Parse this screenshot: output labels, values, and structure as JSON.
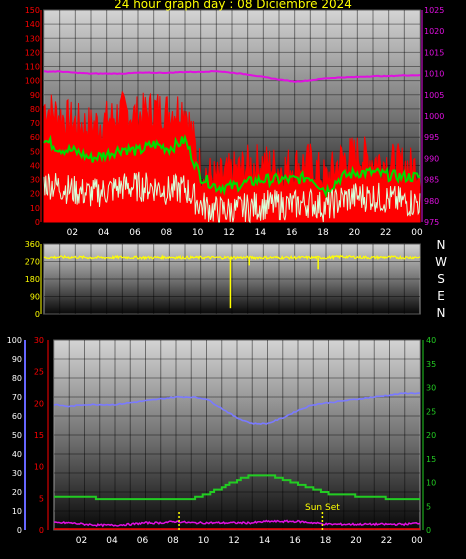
{
  "title": "24 hour graph day : 08 Diciembre 2024",
  "x_ticks": [
    "02",
    "04",
    "06",
    "08",
    "10",
    "12",
    "14",
    "16",
    "18",
    "20",
    "22",
    "00"
  ],
  "colors": {
    "wind_gust": "#ff0000",
    "wind_avg": "#00dd00",
    "wind_min": "#d8ffd8",
    "pressure": "#e010e0",
    "direction": "#ffff00",
    "temperature": "#7a7aff",
    "dewpoint": "#22cc22",
    "rain": "#e010e0",
    "marker": "#ffff00",
    "left_axis_1": "#ff0000",
    "right_axis_1": "#e010e0",
    "left_axis_3_a": "#6666ff",
    "left_axis_3_b": "#ff0000",
    "right_axis_3": "#22cc22"
  },
  "compass_labels": [
    "N",
    "W",
    "S",
    "E",
    "N"
  ],
  "sunset_label": "Sun Set",
  "chart_data": [
    {
      "type": "line",
      "name": "wind-speed-and-pressure",
      "x": "hour-of-day",
      "left_axis_ticks": [
        0,
        10,
        20,
        30,
        40,
        50,
        60,
        70,
        80,
        90,
        100,
        110,
        120,
        130,
        140,
        150
      ],
      "right_axis_ticks": [
        975,
        980,
        985,
        990,
        995,
        1000,
        1005,
        1010,
        1015,
        1020,
        1025
      ],
      "ylim_left": [
        0,
        150
      ],
      "ylim_right": [
        975,
        1025
      ],
      "series": [
        {
          "key": "wind_gust",
          "axis": "left",
          "x": [
            0,
            1,
            2,
            3,
            4,
            5,
            6,
            7,
            8,
            9,
            10,
            11,
            12,
            13,
            14,
            15,
            16,
            17,
            18,
            19,
            20,
            21,
            22,
            23,
            24
          ],
          "values": [
            82,
            75,
            70,
            68,
            72,
            78,
            75,
            80,
            78,
            82,
            38,
            30,
            35,
            40,
            42,
            38,
            40,
            42,
            30,
            45,
            48,
            44,
            42,
            40,
            38
          ]
        },
        {
          "key": "wind_avg",
          "axis": "left",
          "x": [
            0,
            1,
            2,
            3,
            4,
            5,
            6,
            7,
            8,
            9,
            10,
            11,
            12,
            13,
            14,
            15,
            16,
            17,
            18,
            19,
            20,
            21,
            22,
            23,
            24
          ],
          "values": [
            58,
            52,
            50,
            45,
            48,
            52,
            50,
            55,
            52,
            58,
            32,
            25,
            25,
            28,
            30,
            30,
            30,
            32,
            22,
            32,
            35,
            35,
            33,
            32,
            32
          ]
        },
        {
          "key": "wind_min",
          "axis": "left",
          "x": [
            0,
            1,
            2,
            3,
            4,
            5,
            6,
            7,
            8,
            9,
            10,
            11,
            12,
            13,
            14,
            15,
            16,
            17,
            18,
            19,
            20,
            21,
            22,
            23,
            24
          ],
          "values": [
            28,
            25,
            22,
            20,
            22,
            25,
            25,
            25,
            22,
            24,
            12,
            8,
            8,
            10,
            12,
            12,
            12,
            14,
            10,
            16,
            18,
            18,
            16,
            14,
            14
          ]
        },
        {
          "key": "pressure",
          "axis": "right",
          "x": [
            0,
            1,
            2,
            3,
            4,
            5,
            6,
            7,
            8,
            9,
            10,
            11,
            12,
            13,
            14,
            15,
            16,
            17,
            18,
            19,
            20,
            21,
            22,
            23,
            24
          ],
          "values": [
            1010.5,
            1010.5,
            1010.2,
            1010,
            1010,
            1010,
            1010.2,
            1010.2,
            1010.2,
            1010.4,
            1010.4,
            1010.6,
            1010.2,
            1009.8,
            1009.2,
            1008.6,
            1008.1,
            1008.4,
            1008.9,
            1009.1,
            1009.2,
            1009.4,
            1009.4,
            1009.6,
            1009.6
          ]
        }
      ]
    },
    {
      "type": "line",
      "name": "wind-direction",
      "x": "hour-of-day",
      "left_axis_ticks": [
        0,
        90,
        180,
        270,
        360
      ],
      "ylim_left": [
        0,
        360
      ],
      "series": [
        {
          "key": "direction",
          "axis": "left",
          "x": [
            0,
            1,
            2,
            3,
            4,
            5,
            6,
            7,
            8,
            9,
            10,
            11,
            11.5,
            12,
            12.5,
            13,
            14,
            15,
            16,
            17,
            18,
            19,
            20,
            21,
            22,
            23,
            24
          ],
          "values": [
            290,
            292,
            292,
            290,
            290,
            292,
            290,
            290,
            292,
            290,
            290,
            290,
            290,
            290,
            290,
            290,
            290,
            290,
            290,
            290,
            290,
            295,
            292,
            290,
            292,
            290,
            292
          ],
          "spikes": [
            {
              "x": 11.9,
              "values": [
                30
              ]
            },
            {
              "x": 13.1,
              "values": [
                250
              ]
            },
            {
              "x": 17.5,
              "values": [
                230
              ]
            }
          ]
        }
      ]
    },
    {
      "type": "line",
      "name": "temperature-humidity-rain",
      "x": "hour-of-day",
      "left_axis_ticks_a": [
        0,
        10,
        20,
        30,
        40,
        50,
        60,
        70,
        80,
        90,
        100
      ],
      "left_axis_ticks_b": [
        0,
        5,
        10,
        15,
        20,
        25,
        30
      ],
      "right_axis_ticks": [
        0,
        5,
        10,
        15,
        20,
        25,
        30,
        35,
        40
      ],
      "ylim_left_a": [
        0,
        100
      ],
      "ylim_left_b": [
        0,
        30
      ],
      "ylim_right": [
        0,
        40
      ],
      "series": [
        {
          "key": "temperature",
          "axis": "left_a",
          "x": [
            0,
            1,
            2,
            3,
            4,
            5,
            6,
            7,
            8,
            9,
            10,
            11,
            12,
            13,
            14,
            15,
            16,
            17,
            18,
            19,
            20,
            21,
            22,
            23,
            24
          ],
          "values": [
            66,
            65,
            66,
            66,
            66,
            67,
            68,
            69,
            70,
            70,
            69,
            64,
            59,
            56,
            56,
            59,
            63,
            66,
            67,
            68,
            69,
            70,
            71,
            72,
            72
          ]
        },
        {
          "key": "dewpoint",
          "axis": "right",
          "x": [
            0,
            1,
            2,
            3,
            4,
            5,
            6,
            7,
            8,
            9,
            10,
            11,
            12,
            13,
            14,
            15,
            16,
            17,
            18,
            19,
            20,
            21,
            22,
            23,
            24
          ],
          "values": [
            7,
            7,
            7,
            6.5,
            6.5,
            6.5,
            6.5,
            6.5,
            6.5,
            6.5,
            7.5,
            9,
            10.5,
            11.5,
            11.5,
            10.5,
            9.5,
            8.5,
            7.5,
            7.5,
            7,
            7,
            6.5,
            6.5,
            6.5
          ]
        },
        {
          "key": "rain",
          "axis": "right",
          "x": [
            0,
            1,
            2,
            3,
            4,
            5,
            6,
            7,
            8,
            9,
            10,
            11,
            12,
            13,
            14,
            15,
            16,
            17,
            18,
            19,
            20,
            21,
            22,
            23,
            24
          ],
          "values": [
            1.5,
            1.5,
            1.2,
            1,
            1,
            1.2,
            1.5,
            1.5,
            1.8,
            1.5,
            1.5,
            1.5,
            1.5,
            1.5,
            1.8,
            1.8,
            1.8,
            1.5,
            1.2,
            1.2,
            1.2,
            1.2,
            1.2,
            1.2,
            1.5
          ]
        }
      ],
      "markers": [
        {
          "x": 8.2,
          "label": ""
        },
        {
          "x": 17.6,
          "label": "Sun Set"
        }
      ]
    }
  ]
}
